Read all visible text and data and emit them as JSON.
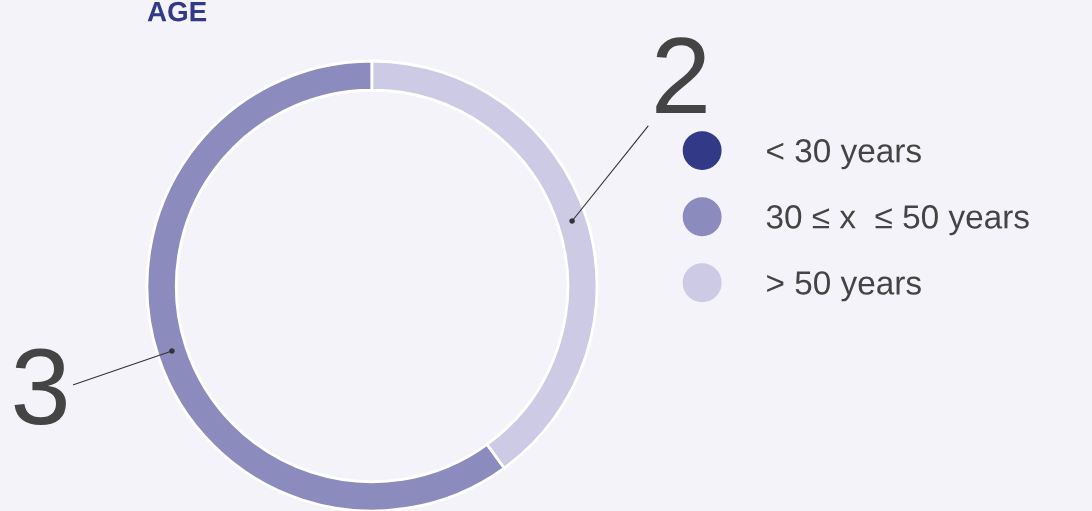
{
  "chart_data": {
    "type": "donut",
    "title": "AGE",
    "categories": [
      "< 30 years",
      "30 ≤ x  ≤ 50 years",
      "> 50 years"
    ],
    "values": [
      0,
      3,
      2
    ],
    "colors": [
      "#323a87",
      "#8c8bbd",
      "#cccae4"
    ],
    "value_labels": [
      null,
      "3",
      "2"
    ],
    "legend": "right"
  }
}
